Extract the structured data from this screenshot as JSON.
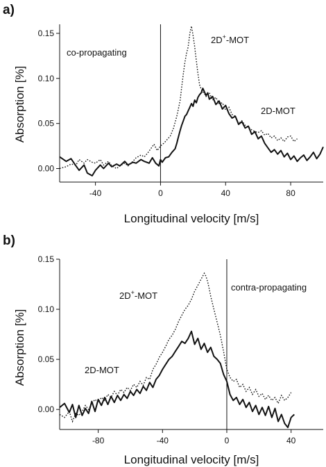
{
  "chart_data": [
    {
      "panel_label": "a)",
      "type": "line",
      "xlabel": "Longitudinal velocity [m/s]",
      "ylabel": "Absorption [%]",
      "xlim": [
        -62,
        100
      ],
      "ylim": [
        -0.015,
        0.16
      ],
      "xticks": [
        -40,
        0,
        40,
        80
      ],
      "xtick_labels": [
        "-40",
        "0",
        "40",
        "80"
      ],
      "yticks": [
        0.0,
        0.05,
        0.1,
        0.15
      ],
      "ytick_labels": [
        "0.00",
        "0.05",
        "0.10",
        "0.15"
      ],
      "vertical_line_x": 0,
      "annotations": [
        {
          "text": "co-propagating",
          "x": -52,
          "y": 0.127
        },
        {
          "text": "2D+-MOT",
          "x": 33,
          "y": 0.14
        },
        {
          "text": "2D-MOT",
          "x": 63,
          "y": 0.067
        }
      ],
      "series": [
        {
          "name": "2D-MOT",
          "style": "solid",
          "x": [
            -62,
            -58,
            -55,
            -52,
            -50,
            -47,
            -45,
            -42,
            -40,
            -37,
            -35,
            -32,
            -30,
            -27,
            -25,
            -22,
            -20,
            -17,
            -15,
            -12,
            -10,
            -7,
            -5,
            -3,
            -1,
            0,
            1,
            3,
            5,
            7,
            9,
            10,
            11,
            12,
            13,
            14,
            15,
            16,
            17,
            18,
            19,
            20,
            21,
            22,
            23,
            24,
            25,
            26,
            27,
            28,
            29,
            30,
            32,
            34,
            36,
            38,
            40,
            42,
            44,
            46,
            48,
            50,
            52,
            54,
            56,
            58,
            60,
            62,
            64,
            66,
            68,
            70,
            72,
            74,
            76,
            78,
            80,
            82,
            84,
            86,
            88,
            90,
            92,
            94,
            96,
            98,
            100
          ],
          "y": [
            0.013,
            0.008,
            0.011,
            0.003,
            -0.002,
            0.004,
            -0.005,
            -0.008,
            -0.002,
            0.004,
            0.0,
            0.006,
            0.002,
            0.005,
            0.003,
            0.008,
            0.004,
            0.007,
            0.006,
            0.01,
            0.008,
            0.006,
            0.012,
            0.006,
            0.003,
            0.01,
            0.007,
            0.012,
            0.013,
            0.018,
            0.022,
            0.028,
            0.035,
            0.042,
            0.048,
            0.053,
            0.058,
            0.06,
            0.064,
            0.068,
            0.072,
            0.069,
            0.076,
            0.073,
            0.079,
            0.082,
            0.084,
            0.089,
            0.085,
            0.081,
            0.084,
            0.077,
            0.08,
            0.071,
            0.075,
            0.066,
            0.07,
            0.061,
            0.056,
            0.058,
            0.049,
            0.052,
            0.045,
            0.047,
            0.038,
            0.041,
            0.033,
            0.036,
            0.028,
            0.023,
            0.018,
            0.021,
            0.016,
            0.02,
            0.013,
            0.017,
            0.01,
            0.014,
            0.008,
            0.012,
            0.015,
            0.009,
            0.013,
            0.018,
            0.011,
            0.016,
            0.024
          ]
        },
        {
          "name": "2D+-MOT",
          "style": "dotted",
          "x": [
            -62,
            -58,
            -55,
            -52,
            -50,
            -47,
            -45,
            -42,
            -40,
            -37,
            -35,
            -32,
            -30,
            -27,
            -25,
            -22,
            -20,
            -17,
            -15,
            -12,
            -10,
            -8,
            -6,
            -4,
            -2,
            0,
            2,
            4,
            6,
            8,
            10,
            12,
            13,
            14,
            15,
            16,
            17,
            18,
            19,
            20,
            21,
            22,
            23,
            24,
            25,
            26,
            27,
            28,
            30,
            32,
            34,
            36,
            38,
            40,
            42,
            44,
            46,
            48,
            50,
            52,
            54,
            56,
            58,
            60,
            62,
            64,
            66,
            68,
            70,
            72,
            74,
            76,
            78,
            80,
            82,
            84
          ],
          "y": [
            0.0,
            0.002,
            0.005,
            0.004,
            0.01,
            0.006,
            0.01,
            0.007,
            0.006,
            0.01,
            0.004,
            0.008,
            0.003,
            0.0,
            0.003,
            0.006,
            0.003,
            0.008,
            0.012,
            0.015,
            0.013,
            0.017,
            0.022,
            0.027,
            0.02,
            0.025,
            0.028,
            0.032,
            0.036,
            0.045,
            0.058,
            0.075,
            0.09,
            0.105,
            0.118,
            0.128,
            0.135,
            0.15,
            0.158,
            0.148,
            0.135,
            0.12,
            0.105,
            0.093,
            0.088,
            0.085,
            0.083,
            0.08,
            0.084,
            0.076,
            0.079,
            0.072,
            0.073,
            0.065,
            0.068,
            0.06,
            0.058,
            0.05,
            0.053,
            0.048,
            0.046,
            0.043,
            0.041,
            0.04,
            0.042,
            0.037,
            0.039,
            0.034,
            0.036,
            0.031,
            0.034,
            0.03,
            0.035,
            0.036,
            0.03,
            0.033
          ]
        }
      ]
    },
    {
      "panel_label": "b)",
      "type": "line",
      "xlabel": "Longitudinal velocity [m/s]",
      "ylabel": "Absorption [%]",
      "xlim": [
        -104,
        60
      ],
      "ylim": [
        -0.02,
        0.15
      ],
      "xticks": [
        -80,
        -40,
        0,
        40
      ],
      "xtick_labels": [
        "-80",
        "-40",
        "0",
        "40"
      ],
      "yticks": [
        0.0,
        0.05,
        0.1,
        0.15
      ],
      "ytick_labels": [
        "0.00",
        "0.05",
        "0.10",
        "0.15"
      ],
      "vertical_line_x": 0,
      "annotations": [
        {
          "text": "2D+-MOT",
          "x": -60,
          "y": 0.115
        },
        {
          "text": "2D-MOT",
          "x": -87,
          "y": 0.045
        },
        {
          "text": "contra-propagating",
          "x": 4,
          "y": 0.12
        }
      ],
      "series": [
        {
          "name": "2D-MOT",
          "style": "solid",
          "x": [
            -104,
            -101,
            -98,
            -96,
            -94,
            -92,
            -90,
            -88,
            -86,
            -84,
            -82,
            -80,
            -78,
            -76,
            -74,
            -72,
            -70,
            -68,
            -66,
            -64,
            -62,
            -60,
            -58,
            -56,
            -54,
            -52,
            -50,
            -48,
            -46,
            -44,
            -42,
            -40,
            -38,
            -36,
            -34,
            -32,
            -30,
            -28,
            -26,
            -24,
            -22,
            -20,
            -18,
            -16,
            -14,
            -12,
            -10,
            -8,
            -6,
            -4,
            -2,
            0,
            2,
            4,
            6,
            8,
            10,
            12,
            14,
            16,
            18,
            20,
            22,
            24,
            26,
            28,
            30,
            32,
            34,
            36,
            38,
            40,
            42
          ],
          "y": [
            0.002,
            0.006,
            -0.003,
            0.005,
            -0.008,
            0.004,
            -0.006,
            0.001,
            -0.004,
            0.008,
            -0.002,
            0.01,
            0.004,
            0.012,
            0.005,
            0.013,
            0.007,
            0.014,
            0.009,
            0.015,
            0.011,
            0.018,
            0.014,
            0.02,
            0.016,
            0.023,
            0.019,
            0.027,
            0.022,
            0.03,
            0.034,
            0.04,
            0.045,
            0.05,
            0.053,
            0.058,
            0.063,
            0.068,
            0.066,
            0.071,
            0.078,
            0.065,
            0.071,
            0.06,
            0.066,
            0.057,
            0.062,
            0.053,
            0.05,
            0.046,
            0.035,
            0.028,
            0.015,
            0.009,
            0.012,
            0.005,
            0.01,
            0.002,
            0.007,
            -0.002,
            0.004,
            -0.005,
            0.002,
            -0.006,
            0.003,
            -0.008,
            0.001,
            -0.012,
            -0.005,
            -0.014,
            -0.018,
            -0.008,
            -0.005
          ]
        },
        {
          "name": "2D+-MOT",
          "style": "dotted",
          "x": [
            -104,
            -101,
            -98,
            -96,
            -94,
            -92,
            -90,
            -88,
            -86,
            -84,
            -82,
            -80,
            -78,
            -76,
            -74,
            -72,
            -70,
            -68,
            -66,
            -64,
            -62,
            -60,
            -58,
            -56,
            -54,
            -52,
            -50,
            -48,
            -46,
            -44,
            -42,
            -40,
            -38,
            -36,
            -34,
            -32,
            -30,
            -28,
            -26,
            -24,
            -22,
            -20,
            -18,
            -16,
            -14,
            -13,
            -12,
            -11,
            -10,
            -8,
            -6,
            -4,
            -2,
            0,
            2,
            4,
            6,
            8,
            10,
            12,
            14,
            16,
            18,
            20,
            22,
            24,
            26,
            28,
            30,
            32,
            34,
            36,
            38,
            40
          ],
          "y": [
            -0.005,
            -0.008,
            -0.002,
            -0.012,
            -0.004,
            -0.006,
            -0.002,
            0.004,
            0.0,
            0.006,
            0.01,
            0.007,
            0.012,
            0.009,
            0.015,
            0.012,
            0.018,
            0.014,
            0.02,
            0.017,
            0.022,
            0.019,
            0.025,
            0.022,
            0.028,
            0.024,
            0.032,
            0.03,
            0.04,
            0.045,
            0.052,
            0.057,
            0.063,
            0.07,
            0.074,
            0.08,
            0.088,
            0.094,
            0.1,
            0.104,
            0.11,
            0.118,
            0.124,
            0.13,
            0.136,
            0.133,
            0.128,
            0.121,
            0.113,
            0.1,
            0.087,
            0.074,
            0.058,
            0.04,
            0.032,
            0.028,
            0.03,
            0.022,
            0.025,
            0.018,
            0.022,
            0.015,
            0.02,
            0.013,
            0.016,
            0.01,
            0.014,
            0.009,
            0.012,
            0.006,
            0.014,
            0.009,
            0.012,
            0.017
          ]
        }
      ]
    }
  ]
}
